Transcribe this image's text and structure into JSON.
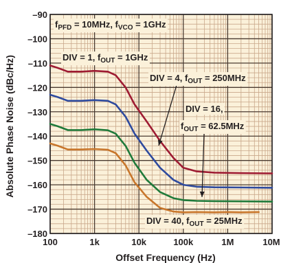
{
  "chart_data": {
    "type": "line",
    "xlabel": "Offset Frequency (Hz)",
    "ylabel": "Absolute Phase Noise (dBc/Hz)",
    "x_scale": "log",
    "xlim": [
      100,
      10000000
    ],
    "ylim": [
      -180,
      -90
    ],
    "grid": true,
    "x_ticks": [
      {
        "value": 100,
        "label": "100"
      },
      {
        "value": 1000,
        "label": "1k"
      },
      {
        "value": 10000,
        "label": "10k"
      },
      {
        "value": 100000,
        "label": "100k"
      },
      {
        "value": 1000000,
        "label": "1M"
      },
      {
        "value": 10000000,
        "label": "10M"
      }
    ],
    "y_ticks": [
      {
        "value": -90,
        "label": "–90"
      },
      {
        "value": -100,
        "label": "–100"
      },
      {
        "value": -110,
        "label": "–110"
      },
      {
        "value": -120,
        "label": "–120"
      },
      {
        "value": -130,
        "label": "–130"
      },
      {
        "value": -140,
        "label": "–140"
      },
      {
        "value": -150,
        "label": "–150"
      },
      {
        "value": -160,
        "label": "–160"
      },
      {
        "value": -170,
        "label": "–170"
      },
      {
        "value": -180,
        "label": "–180"
      }
    ],
    "annotations": {
      "conditions": {
        "parts": [
          {
            "t": "f",
            "sub": false
          },
          {
            "t": "PFD",
            "sub": true
          },
          {
            "t": " = 10MHz, f",
            "sub": false
          },
          {
            "t": "VCO",
            "sub": true
          },
          {
            "t": " = 1GHz",
            "sub": false
          }
        ]
      },
      "div1": {
        "parts": [
          {
            "t": "DIV = 1, f",
            "sub": false
          },
          {
            "t": "OUT",
            "sub": true
          },
          {
            "t": " = 1GHz",
            "sub": false
          }
        ]
      },
      "div4": {
        "parts": [
          {
            "t": "DIV = 4, f",
            "sub": false
          },
          {
            "t": "OUT",
            "sub": true
          },
          {
            "t": " = 250MHz",
            "sub": false
          }
        ]
      },
      "div16_line1": {
        "parts": [
          {
            "t": "DIV = 16,",
            "sub": false
          }
        ]
      },
      "div16_line2": {
        "parts": [
          {
            "t": "f",
            "sub": false
          },
          {
            "t": "OUT",
            "sub": true
          },
          {
            "t": " = 62.5MHz",
            "sub": false
          }
        ]
      },
      "div40": {
        "parts": [
          {
            "t": "DIV = 40, f",
            "sub": false
          },
          {
            "t": "OUT",
            "sub": true
          },
          {
            "t": " = 25MHz",
            "sub": false
          }
        ]
      }
    },
    "series": [
      {
        "key": "div1",
        "color": "#9e1b32",
        "points": [
          [
            100,
            -111
          ],
          [
            150,
            -112
          ],
          [
            250,
            -113.5
          ],
          [
            500,
            -113.5
          ],
          [
            1000,
            -113.2
          ],
          [
            2000,
            -113.5
          ],
          [
            3000,
            -115
          ],
          [
            5000,
            -120
          ],
          [
            8000,
            -127
          ],
          [
            15000,
            -134
          ],
          [
            30000,
            -142
          ],
          [
            60000,
            -149
          ],
          [
            100000,
            -153
          ],
          [
            200000,
            -154.5
          ],
          [
            500000,
            -155
          ],
          [
            2000000,
            -155.2
          ],
          [
            10000000,
            -155.3
          ]
        ]
      },
      {
        "key": "div4",
        "color": "#2e4a9e",
        "points": [
          [
            100,
            -123
          ],
          [
            150,
            -124
          ],
          [
            250,
            -125.5
          ],
          [
            500,
            -125.5
          ],
          [
            1000,
            -125.2
          ],
          [
            2000,
            -125.5
          ],
          [
            3000,
            -127
          ],
          [
            5000,
            -132
          ],
          [
            8000,
            -139
          ],
          [
            15000,
            -146
          ],
          [
            30000,
            -153
          ],
          [
            60000,
            -158
          ],
          [
            100000,
            -160
          ],
          [
            200000,
            -160.8
          ],
          [
            500000,
            -161
          ],
          [
            2000000,
            -161.1
          ],
          [
            10000000,
            -161.2
          ]
        ]
      },
      {
        "key": "div16",
        "color": "#1f7a3a",
        "points": [
          [
            100,
            -135
          ],
          [
            150,
            -136
          ],
          [
            250,
            -137.5
          ],
          [
            500,
            -137.5
          ],
          [
            1000,
            -137.2
          ],
          [
            2000,
            -137.6
          ],
          [
            3000,
            -139
          ],
          [
            5000,
            -144
          ],
          [
            8000,
            -151
          ],
          [
            15000,
            -158
          ],
          [
            30000,
            -163
          ],
          [
            60000,
            -165.5
          ],
          [
            100000,
            -166.3
          ],
          [
            200000,
            -166.6
          ],
          [
            500000,
            -166.7
          ],
          [
            2000000,
            -166.8
          ],
          [
            10000000,
            -166.9
          ]
        ]
      },
      {
        "key": "div40",
        "color": "#c8762b",
        "points": [
          [
            100,
            -143
          ],
          [
            150,
            -144
          ],
          [
            250,
            -145.5
          ],
          [
            500,
            -145.5
          ],
          [
            1000,
            -145.3
          ],
          [
            2000,
            -145.6
          ],
          [
            3000,
            -147
          ],
          [
            5000,
            -152
          ],
          [
            8000,
            -159
          ],
          [
            15000,
            -165
          ],
          [
            30000,
            -169.5
          ],
          [
            60000,
            -171
          ],
          [
            100000,
            -171.3
          ],
          [
            200000,
            -171.2
          ],
          [
            500000,
            -171.3
          ],
          [
            1000000,
            -171.2
          ],
          [
            2000000,
            -171.3
          ],
          [
            5000000,
            -171.2
          ]
        ]
      }
    ]
  }
}
